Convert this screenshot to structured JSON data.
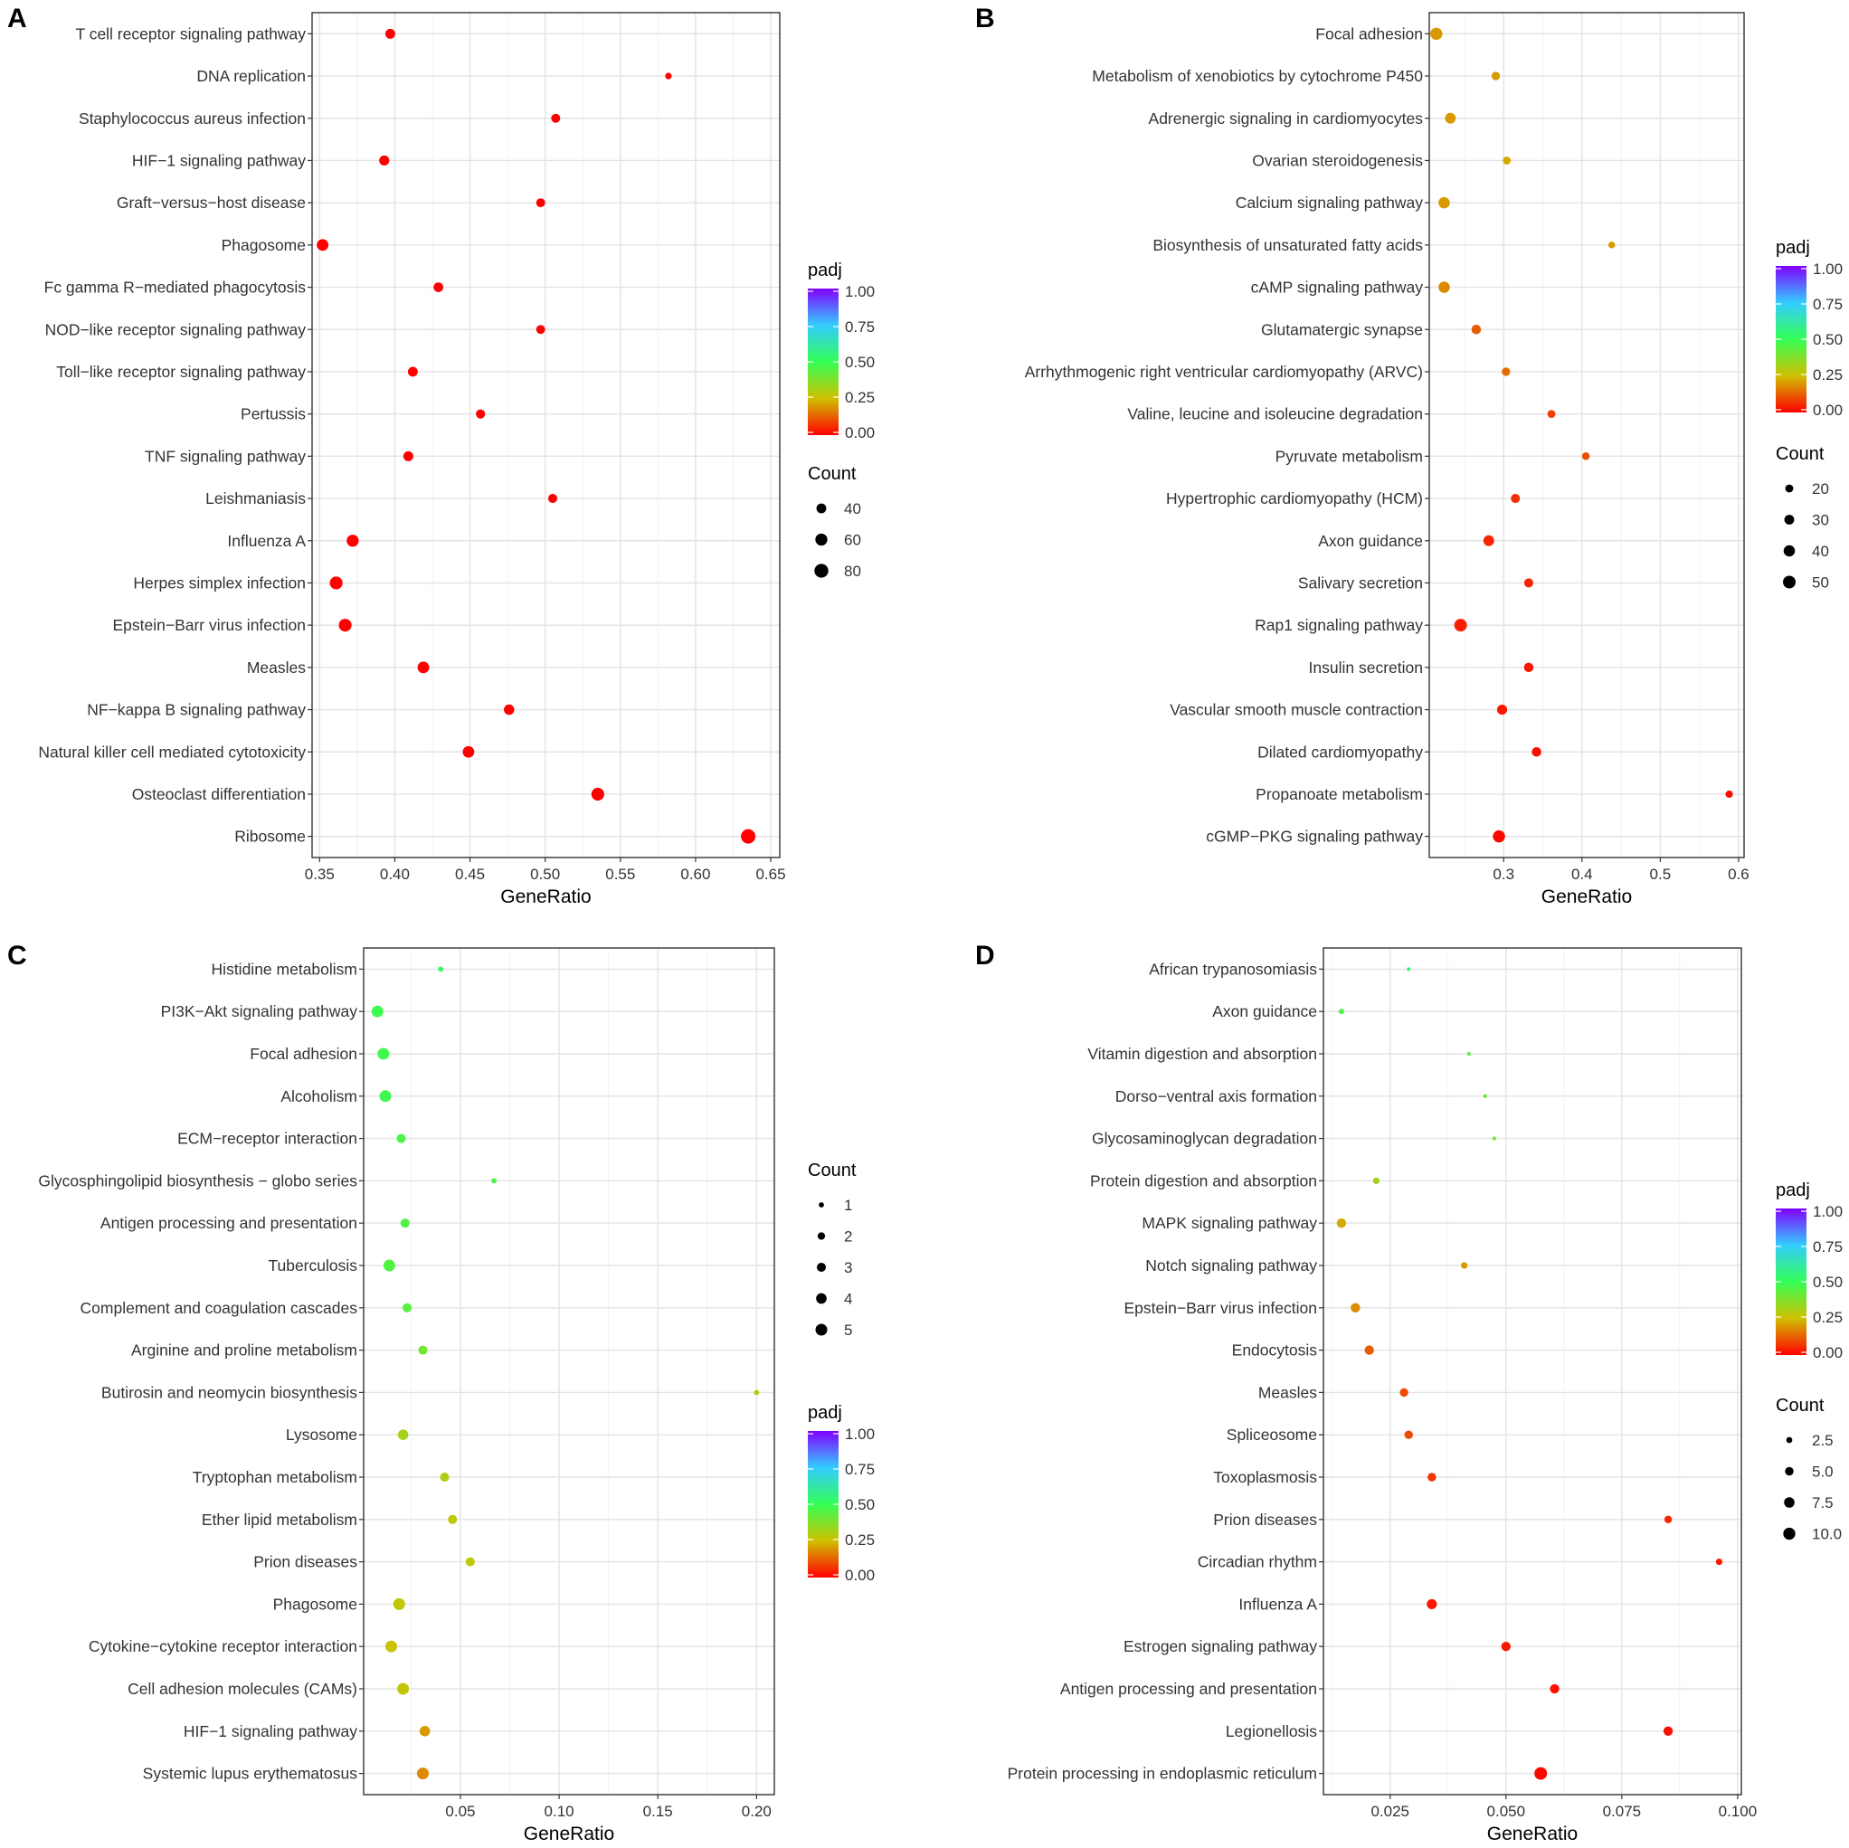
{
  "chart_data": [
    {
      "panel": "A",
      "type": "scatter",
      "xlabel": "GeneRatio",
      "xlim": [
        0.345,
        0.656
      ],
      "xticks": [
        0.35,
        0.4,
        0.45,
        0.5,
        0.55,
        0.6,
        0.65
      ],
      "xtick_labels": [
        "0.35",
        "0.40",
        "0.45",
        "0.50",
        "0.55",
        "0.60",
        "0.65"
      ],
      "color_legend": {
        "title": "padj",
        "labels": [
          "1.00",
          "0.75",
          "0.50",
          "0.25",
          "0.00"
        ]
      },
      "size_legend": {
        "title": "Count",
        "labels": [
          "40",
          "60",
          "80"
        ],
        "values": [
          40,
          60,
          80
        ]
      },
      "legend_order": [
        "color",
        "size"
      ],
      "points": [
        {
          "category": "T cell receptor signaling pathway",
          "gene_ratio": 0.397,
          "count": 41,
          "padj": 0.0
        },
        {
          "category": "DNA replication",
          "gene_ratio": 0.582,
          "count": 18,
          "padj": 0.0
        },
        {
          "category": "Staphylococcus aureus infection",
          "gene_ratio": 0.507,
          "count": 34,
          "padj": 0.0
        },
        {
          "category": "HIF−1 signaling pathway",
          "gene_ratio": 0.393,
          "count": 42,
          "padj": 0.0
        },
        {
          "category": "Graft−versus−host disease",
          "gene_ratio": 0.497,
          "count": 33,
          "padj": 0.0
        },
        {
          "category": "Phagosome",
          "gene_ratio": 0.352,
          "count": 56,
          "padj": 0.0
        },
        {
          "category": "Fc gamma R−mediated phagocytosis",
          "gene_ratio": 0.429,
          "count": 39,
          "padj": 0.0
        },
        {
          "category": "NOD−like receptor signaling pathway",
          "gene_ratio": 0.497,
          "count": 33,
          "padj": 0.0
        },
        {
          "category": "Toll−like receptor signaling pathway",
          "gene_ratio": 0.412,
          "count": 40,
          "padj": 0.0
        },
        {
          "category": "Pertussis",
          "gene_ratio": 0.457,
          "count": 35,
          "padj": 0.0
        },
        {
          "category": "TNF signaling pathway",
          "gene_ratio": 0.409,
          "count": 41,
          "padj": 0.0
        },
        {
          "category": "Leishmaniasis",
          "gene_ratio": 0.505,
          "count": 34,
          "padj": 0.0
        },
        {
          "category": "Influenza A",
          "gene_ratio": 0.372,
          "count": 60,
          "padj": 0.0
        },
        {
          "category": "Herpes simplex infection",
          "gene_ratio": 0.361,
          "count": 68,
          "padj": 0.0
        },
        {
          "category": "Epstein−Barr virus infection",
          "gene_ratio": 0.367,
          "count": 68,
          "padj": 0.0
        },
        {
          "category": "Measles",
          "gene_ratio": 0.419,
          "count": 56,
          "padj": 0.0
        },
        {
          "category": "NF−kappa B signaling pathway",
          "gene_ratio": 0.476,
          "count": 45,
          "padj": 0.0
        },
        {
          "category": "Natural killer cell mediated cytotoxicity",
          "gene_ratio": 0.449,
          "count": 56,
          "padj": 0.0
        },
        {
          "category": "Osteoclast differentiation",
          "gene_ratio": 0.535,
          "count": 68,
          "padj": 0.0
        },
        {
          "category": "Ribosome",
          "gene_ratio": 0.635,
          "count": 87,
          "padj": 0.0
        }
      ]
    },
    {
      "panel": "B",
      "type": "scatter",
      "xlabel": "GeneRatio",
      "xlim": [
        0.205,
        0.607
      ],
      "xticks": [
        0.3,
        0.4,
        0.5,
        0.6
      ],
      "xtick_labels": [
        "0.3",
        "0.4",
        "0.5",
        "0.6"
      ],
      "color_legend": {
        "title": "padj",
        "labels": [
          "1.00",
          "0.75",
          "0.50",
          "0.25",
          "0.00"
        ]
      },
      "size_legend": {
        "title": "Count",
        "labels": [
          "20",
          "30",
          "40",
          "50"
        ],
        "values": [
          20,
          30,
          40,
          50
        ]
      },
      "legend_order": [
        "color",
        "size"
      ],
      "points": [
        {
          "category": "Focal adhesion",
          "gene_ratio": 0.214,
          "count": 46,
          "padj": 0.2
        },
        {
          "category": "Metabolism of xenobiotics by cytochrome P450",
          "gene_ratio": 0.29,
          "count": 22,
          "padj": 0.2
        },
        {
          "category": "Adrenergic signaling in cardiomyocytes",
          "gene_ratio": 0.232,
          "count": 36,
          "padj": 0.2
        },
        {
          "category": "Ovarian steroidogenesis",
          "gene_ratio": 0.304,
          "count": 20,
          "padj": 0.22
        },
        {
          "category": "Calcium signaling pathway",
          "gene_ratio": 0.224,
          "count": 40,
          "padj": 0.2
        },
        {
          "category": "Biosynthesis of unsaturated fatty acids",
          "gene_ratio": 0.438,
          "count": 14,
          "padj": 0.2
        },
        {
          "category": "cAMP signaling pathway",
          "gene_ratio": 0.224,
          "count": 40,
          "padj": 0.18
        },
        {
          "category": "Glutamatergic synapse",
          "gene_ratio": 0.265,
          "count": 28,
          "padj": 0.12
        },
        {
          "category": "Arrhythmogenic right ventricular cardiomyopathy (ARVC)",
          "gene_ratio": 0.303,
          "count": 22,
          "padj": 0.14
        },
        {
          "category": "Valine, leucine and isoleucine degradation",
          "gene_ratio": 0.361,
          "count": 20,
          "padj": 0.08
        },
        {
          "category": "Pyruvate metabolism",
          "gene_ratio": 0.405,
          "count": 18,
          "padj": 0.1
        },
        {
          "category": "Hypertrophic cardiomyopathy (HCM)",
          "gene_ratio": 0.315,
          "count": 26,
          "padj": 0.06
        },
        {
          "category": "Axon guidance",
          "gene_ratio": 0.281,
          "count": 36,
          "padj": 0.05
        },
        {
          "category": "Salivary secretion",
          "gene_ratio": 0.332,
          "count": 26,
          "padj": 0.05
        },
        {
          "category": "Rap1 signaling pathway",
          "gene_ratio": 0.245,
          "count": 50,
          "padj": 0.04
        },
        {
          "category": "Insulin secretion",
          "gene_ratio": 0.332,
          "count": 28,
          "padj": 0.03
        },
        {
          "category": "Vascular smooth muscle contraction",
          "gene_ratio": 0.298,
          "count": 32,
          "padj": 0.03
        },
        {
          "category": "Dilated cardiomyopathy",
          "gene_ratio": 0.342,
          "count": 28,
          "padj": 0.02
        },
        {
          "category": "Propanoate metabolism",
          "gene_ratio": 0.588,
          "count": 17,
          "padj": 0.02
        },
        {
          "category": "cGMP−PKG signaling pathway",
          "gene_ratio": 0.294,
          "count": 46,
          "padj": 0.01
        }
      ]
    },
    {
      "panel": "C",
      "type": "scatter",
      "xlabel": "GeneRatio",
      "xlim": [
        0.001,
        0.209
      ],
      "xticks": [
        0.05,
        0.1,
        0.15,
        0.2
      ],
      "xtick_labels": [
        "0.05",
        "0.10",
        "0.15",
        "0.20"
      ],
      "color_legend": {
        "title": "padj",
        "labels": [
          "1.00",
          "0.75",
          "0.50",
          "0.25",
          "0.00"
        ]
      },
      "size_legend": {
        "title": "Count",
        "labels": [
          "1",
          "2",
          "3",
          "4",
          "5"
        ],
        "values": [
          1,
          2,
          3,
          4,
          5
        ]
      },
      "legend_order": [
        "size",
        "color"
      ],
      "points": [
        {
          "category": "Histidine metabolism",
          "gene_ratio": 0.04,
          "count": 1,
          "padj": 0.52
        },
        {
          "category": "PI3K−Akt signaling pathway",
          "gene_ratio": 0.008,
          "count": 5,
          "padj": 0.48
        },
        {
          "category": "Focal adhesion",
          "gene_ratio": 0.011,
          "count": 5,
          "padj": 0.48
        },
        {
          "category": "Alcoholism",
          "gene_ratio": 0.012,
          "count": 5,
          "padj": 0.48
        },
        {
          "category": "ECM−receptor interaction",
          "gene_ratio": 0.02,
          "count": 3,
          "padj": 0.46
        },
        {
          "category": "Glycosphingolipid biosynthesis − globo series",
          "gene_ratio": 0.067,
          "count": 1,
          "padj": 0.46
        },
        {
          "category": "Antigen processing and presentation",
          "gene_ratio": 0.022,
          "count": 3,
          "padj": 0.45
        },
        {
          "category": "Tuberculosis",
          "gene_ratio": 0.014,
          "count": 5,
          "padj": 0.45
        },
        {
          "category": "Complement and coagulation cascades",
          "gene_ratio": 0.023,
          "count": 3,
          "padj": 0.44
        },
        {
          "category": "Arginine and proline metabolism",
          "gene_ratio": 0.031,
          "count": 3,
          "padj": 0.4
        },
        {
          "category": "Butirosin and neomycin biosynthesis",
          "gene_ratio": 0.2,
          "count": 1,
          "padj": 0.3
        },
        {
          "category": "Lysosome",
          "gene_ratio": 0.021,
          "count": 4,
          "padj": 0.32
        },
        {
          "category": "Tryptophan metabolism",
          "gene_ratio": 0.042,
          "count": 3,
          "padj": 0.3
        },
        {
          "category": "Ether lipid metabolism",
          "gene_ratio": 0.046,
          "count": 3,
          "padj": 0.28
        },
        {
          "category": "Prion diseases",
          "gene_ratio": 0.055,
          "count": 3,
          "padj": 0.28
        },
        {
          "category": "Phagosome",
          "gene_ratio": 0.019,
          "count": 5,
          "padj": 0.27
        },
        {
          "category": "Cytokine−cytokine receptor interaction",
          "gene_ratio": 0.015,
          "count": 5,
          "padj": 0.26
        },
        {
          "category": "Cell adhesion molecules (CAMs)",
          "gene_ratio": 0.021,
          "count": 5,
          "padj": 0.27
        },
        {
          "category": "HIF−1 signaling pathway",
          "gene_ratio": 0.032,
          "count": 4,
          "padj": 0.2
        },
        {
          "category": "Systemic lupus erythematosus",
          "gene_ratio": 0.031,
          "count": 5,
          "padj": 0.18
        }
      ]
    },
    {
      "panel": "D",
      "type": "scatter",
      "xlabel": "GeneRatio",
      "xlim": [
        0.0106,
        0.1008
      ],
      "xticks": [
        0.025,
        0.05,
        0.075,
        0.1
      ],
      "xtick_labels": [
        "0.025",
        "0.050",
        "0.075",
        "0.100"
      ],
      "color_legend": {
        "title": "padj",
        "labels": [
          "1.00",
          "0.75",
          "0.50",
          "0.25",
          "0.00"
        ]
      },
      "size_legend": {
        "title": "Count",
        "labels": [
          "2.5",
          "5.0",
          "7.5",
          "10.0"
        ],
        "values": [
          2.5,
          5.0,
          7.5,
          10.0
        ]
      },
      "legend_order": [
        "color",
        "size"
      ],
      "points": [
        {
          "category": "African trypanosomiasis",
          "gene_ratio": 0.029,
          "count": 1,
          "padj": 0.52
        },
        {
          "category": "Axon guidance",
          "gene_ratio": 0.0145,
          "count": 2,
          "padj": 0.46
        },
        {
          "category": "Vitamin digestion and absorption",
          "gene_ratio": 0.042,
          "count": 1,
          "padj": 0.44
        },
        {
          "category": "Dorso−ventral axis formation",
          "gene_ratio": 0.0455,
          "count": 1,
          "padj": 0.42
        },
        {
          "category": "Glycosaminoglycan degradation",
          "gene_ratio": 0.0475,
          "count": 1,
          "padj": 0.4
        },
        {
          "category": "Protein digestion and absorption",
          "gene_ratio": 0.022,
          "count": 3,
          "padj": 0.32
        },
        {
          "category": "MAPK signaling pathway",
          "gene_ratio": 0.0145,
          "count": 6,
          "padj": 0.22
        },
        {
          "category": "Notch signaling pathway",
          "gene_ratio": 0.041,
          "count": 3,
          "padj": 0.2
        },
        {
          "category": "Epstein−Barr virus infection",
          "gene_ratio": 0.0175,
          "count": 6,
          "padj": 0.18
        },
        {
          "category": "Endocytosis",
          "gene_ratio": 0.0205,
          "count": 6,
          "padj": 0.12
        },
        {
          "category": "Measles",
          "gene_ratio": 0.028,
          "count": 5,
          "padj": 0.1
        },
        {
          "category": "Spliceosome",
          "gene_ratio": 0.029,
          "count": 5,
          "padj": 0.1
        },
        {
          "category": "Toxoplasmosis",
          "gene_ratio": 0.034,
          "count": 5,
          "padj": 0.07
        },
        {
          "category": "Prion diseases",
          "gene_ratio": 0.085,
          "count": 4,
          "padj": 0.05
        },
        {
          "category": "Circadian rhythm",
          "gene_ratio": 0.096,
          "count": 3,
          "padj": 0.04
        },
        {
          "category": "Influenza A",
          "gene_ratio": 0.034,
          "count": 7,
          "padj": 0.03
        },
        {
          "category": "Estrogen signaling pathway",
          "gene_ratio": 0.05,
          "count": 6,
          "padj": 0.03
        },
        {
          "category": "Antigen processing and presentation",
          "gene_ratio": 0.0605,
          "count": 6,
          "padj": 0.02
        },
        {
          "category": "Legionellosis",
          "gene_ratio": 0.085,
          "count": 6,
          "padj": 0.02
        },
        {
          "category": "Protein processing in endoplasmic reticulum",
          "gene_ratio": 0.0575,
          "count": 11,
          "padj": 0.01
        }
      ]
    }
  ]
}
